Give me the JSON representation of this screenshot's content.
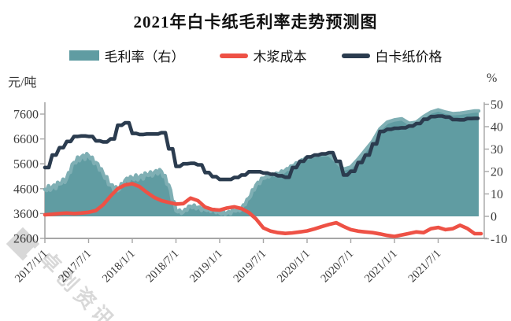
{
  "title": "2021年白卡纸毛利率走势预测图",
  "legend": [
    {
      "label": "毛利率（右）",
      "type": "area",
      "color": "#609CA2"
    },
    {
      "label": "木浆成本",
      "type": "line",
      "color": "#EE5145"
    },
    {
      "label": "白卡纸价格",
      "type": "line",
      "color": "#2B3C4F"
    }
  ],
  "axes": {
    "left_unit": "元/吨",
    "right_unit": "%",
    "left_ticks": [
      2600,
      3600,
      4600,
      5600,
      6600,
      7600
    ],
    "right_ticks": [
      -10,
      0,
      10,
      20,
      30,
      40,
      50
    ],
    "x_ticks": [
      "2017/1/1",
      "2017/7/1",
      "2018/1/1",
      "2018/7/1",
      "2019/1/1",
      "2019/7/1",
      "2020/1/1",
      "2020/7/1",
      "2021/1/1",
      "2021/7/1"
    ]
  },
  "watermark": {
    "text": "卓创资讯",
    "color": "#d2d2d2"
  },
  "chart_data": {
    "type": "area",
    "note": "combo chart: area on right % axis, two lines on left yuan/ton axis, monthly 2017-01 to 2021-12",
    "x_months": [
      "2017-01",
      "2017-02",
      "2017-03",
      "2017-04",
      "2017-05",
      "2017-06",
      "2017-07",
      "2017-08",
      "2017-09",
      "2017-10",
      "2017-11",
      "2017-12",
      "2018-01",
      "2018-02",
      "2018-03",
      "2018-04",
      "2018-05",
      "2018-06",
      "2018-07",
      "2018-08",
      "2018-09",
      "2018-10",
      "2018-11",
      "2018-12",
      "2019-01",
      "2019-02",
      "2019-03",
      "2019-04",
      "2019-05",
      "2019-06",
      "2019-07",
      "2019-08",
      "2019-09",
      "2019-10",
      "2019-11",
      "2019-12",
      "2020-01",
      "2020-02",
      "2020-03",
      "2020-04",
      "2020-05",
      "2020-06",
      "2020-07",
      "2020-08",
      "2020-09",
      "2020-10",
      "2020-11",
      "2020-12",
      "2021-01",
      "2021-02",
      "2021-03",
      "2021-04",
      "2021-05",
      "2021-06",
      "2021-07",
      "2021-08",
      "2021-09",
      "2021-10",
      "2021-11",
      "2021-12"
    ],
    "left_axis_range": [
      2600,
      8100
    ],
    "right_axis_range": [
      -10,
      51
    ],
    "series": [
      {
        "name": "毛利率（右）",
        "axis": "right",
        "unit": "%",
        "type": "area",
        "color": "#609CA2",
        "values": [
          12,
          13,
          14.5,
          17,
          24,
          26.5,
          27,
          24,
          19,
          14,
          11.5,
          16,
          17,
          17.5,
          18.5,
          19.5,
          20,
          14,
          2.5,
          2,
          4.5,
          4,
          3,
          3,
          1.5,
          1.5,
          2.5,
          3.5,
          8,
          14,
          17,
          18.5,
          19,
          20.5,
          22.5,
          24.5,
          26,
          27,
          27.5,
          27.5,
          24.5,
          21,
          22,
          25.5,
          29.5,
          33.5,
          39,
          42,
          43,
          43.5,
          41.5,
          42,
          44.5,
          46.5,
          47.5,
          46.5,
          45.8,
          46,
          46.5,
          47
        ]
      },
      {
        "name": "木浆成本",
        "axis": "left",
        "unit": "元/吨",
        "type": "line",
        "color": "#EE5145",
        "values": [
          3550,
          3570,
          3600,
          3620,
          3600,
          3620,
          3650,
          3720,
          3950,
          4300,
          4600,
          4750,
          4800,
          4680,
          4450,
          4250,
          4120,
          4050,
          3980,
          4000,
          4220,
          4120,
          3860,
          3760,
          3740,
          3820,
          3870,
          3800,
          3640,
          3380,
          3020,
          2890,
          2830,
          2800,
          2820,
          2860,
          2900,
          2980,
          3070,
          3160,
          3230,
          3080,
          2950,
          2890,
          2860,
          2830,
          2780,
          2720,
          2680,
          2740,
          2800,
          2860,
          2830,
          2990,
          3040,
          2950,
          2990,
          3130,
          3000,
          2790
        ]
      },
      {
        "name": "白卡纸价格",
        "axis": "left",
        "unit": "元/吨",
        "type": "line",
        "color": "#2B3C4F",
        "values": [
          5450,
          5950,
          6250,
          6500,
          6700,
          6720,
          6700,
          6520,
          6480,
          6600,
          7150,
          7250,
          6820,
          6780,
          6800,
          6800,
          6850,
          6200,
          5500,
          5600,
          5620,
          5560,
          5250,
          5080,
          4970,
          4970,
          5050,
          5150,
          5280,
          5280,
          5230,
          5180,
          5120,
          5060,
          5450,
          5700,
          5880,
          5950,
          6000,
          6050,
          5700,
          5150,
          5300,
          5650,
          5950,
          6400,
          6900,
          6990,
          7030,
          7050,
          7120,
          7220,
          7390,
          7500,
          7520,
          7480,
          7380,
          7370,
          7420,
          7430
        ]
      }
    ],
    "title": "2021年白卡纸毛利率走势预测图",
    "xlabel": "",
    "ylabel_left": "元/吨",
    "ylabel_right": "%",
    "grid": false,
    "legend_position": "top"
  }
}
